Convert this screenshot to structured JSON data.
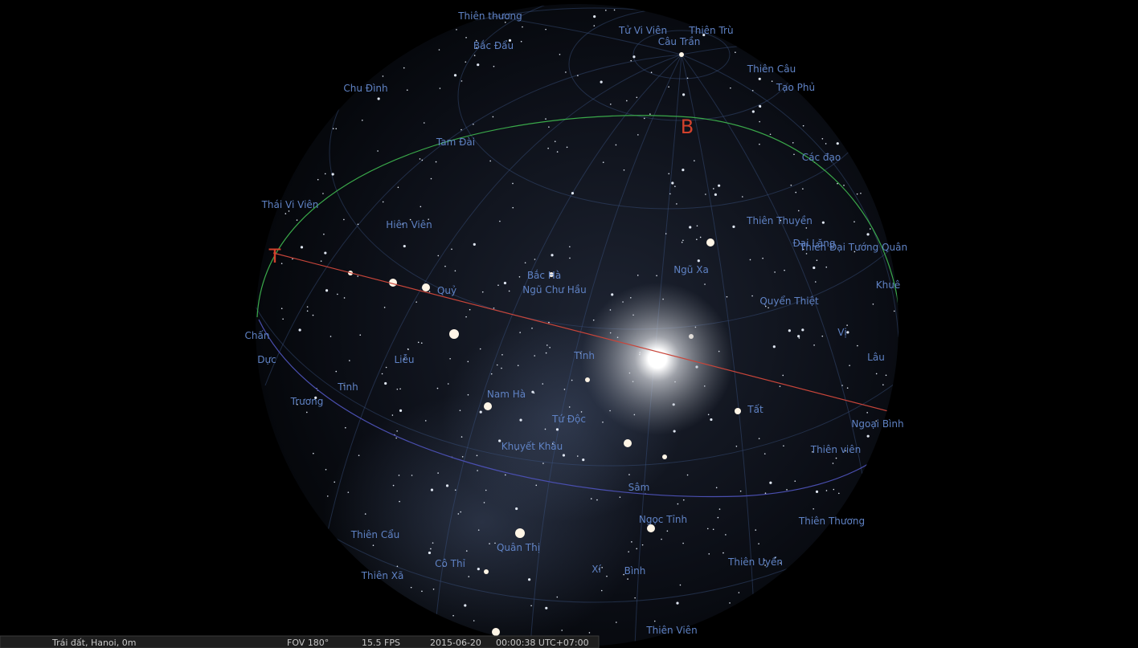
{
  "sky": {
    "cardinals": [
      "B",
      "T"
    ],
    "labels": [
      "Thiên thương",
      "Bắc Đẩu",
      "Tử Vi Viên",
      "Thiên Trù",
      "Câu Trần",
      "Thiên Câu",
      "Tạo Phủ",
      "Chu Đình",
      "Tam Đài",
      "Các đạo",
      "Thái Vi Viên",
      "Thiên Thuyền",
      "Hiên Viên",
      "Đại Lăng",
      "Thiên Đại Tướng Quân",
      "Ngũ Xa",
      "Bắc Hà",
      "Ngũ Chư Hầu",
      "Quỷ",
      "Khuê",
      "Quyển Thiệt",
      "Chấn",
      "Vị",
      "Lâu",
      "Liễu",
      "Tỉnh",
      "Dực",
      "Tinh",
      "Trương",
      "Nam Hà",
      "Tất",
      "Ngoại Bình",
      "Tứ Độc",
      "Khuyết Khâu",
      "Thiên viên",
      "Sâm",
      "Ngọc Tỉnh",
      "Thiên Thương",
      "Thiên Cẩu",
      "Quân Thị",
      "Thiên Uyển",
      "Cô Thỉ",
      "Xí",
      "Bình",
      "Thiên Xã",
      "Thiên Viên"
    ]
  },
  "status_bar": {
    "location": "Trái đất, Hanoi, 0m",
    "fov": "FOV 180°",
    "fps": "15.5 FPS",
    "date": "2015-06-20",
    "time": "00:00:38 UTC+07:00"
  }
}
